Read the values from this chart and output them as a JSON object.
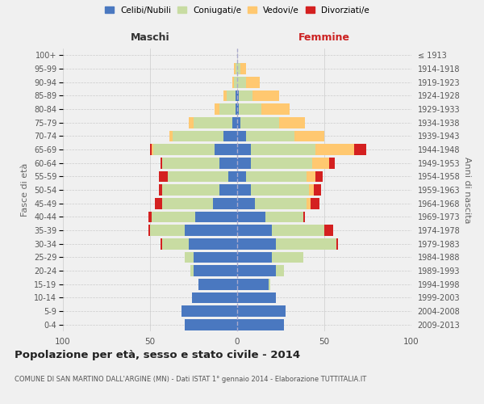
{
  "age_groups": [
    "0-4",
    "5-9",
    "10-14",
    "15-19",
    "20-24",
    "25-29",
    "30-34",
    "35-39",
    "40-44",
    "45-49",
    "50-54",
    "55-59",
    "60-64",
    "65-69",
    "70-74",
    "75-79",
    "80-84",
    "85-89",
    "90-94",
    "95-99",
    "100+"
  ],
  "birth_years": [
    "2009-2013",
    "2004-2008",
    "1999-2003",
    "1994-1998",
    "1989-1993",
    "1984-1988",
    "1979-1983",
    "1974-1978",
    "1969-1973",
    "1964-1968",
    "1959-1963",
    "1954-1958",
    "1949-1953",
    "1944-1948",
    "1939-1943",
    "1934-1938",
    "1929-1933",
    "1924-1928",
    "1919-1923",
    "1914-1918",
    "≤ 1913"
  ],
  "males": {
    "celibi": [
      30,
      32,
      26,
      22,
      25,
      25,
      28,
      30,
      24,
      14,
      10,
      5,
      10,
      13,
      8,
      3,
      1,
      1,
      0,
      0,
      0
    ],
    "coniugati": [
      0,
      0,
      0,
      0,
      2,
      5,
      15,
      20,
      25,
      29,
      33,
      35,
      33,
      35,
      29,
      22,
      9,
      5,
      2,
      1,
      0
    ],
    "vedovi": [
      0,
      0,
      0,
      0,
      0,
      0,
      0,
      0,
      0,
      0,
      0,
      0,
      0,
      1,
      2,
      3,
      3,
      2,
      1,
      1,
      0
    ],
    "divorziati": [
      0,
      0,
      0,
      0,
      0,
      0,
      1,
      1,
      2,
      4,
      2,
      5,
      1,
      1,
      0,
      0,
      0,
      0,
      0,
      0,
      0
    ]
  },
  "females": {
    "nubili": [
      27,
      28,
      22,
      18,
      22,
      20,
      22,
      20,
      16,
      10,
      8,
      5,
      8,
      8,
      5,
      2,
      1,
      1,
      0,
      0,
      0
    ],
    "coniugate": [
      0,
      0,
      0,
      1,
      5,
      18,
      35,
      30,
      22,
      30,
      33,
      35,
      35,
      37,
      28,
      22,
      13,
      8,
      5,
      2,
      0
    ],
    "vedove": [
      0,
      0,
      0,
      0,
      0,
      0,
      0,
      0,
      0,
      2,
      3,
      5,
      10,
      22,
      17,
      15,
      16,
      15,
      8,
      3,
      0
    ],
    "divorziate": [
      0,
      0,
      0,
      0,
      0,
      0,
      1,
      5,
      1,
      5,
      4,
      4,
      3,
      7,
      0,
      0,
      0,
      0,
      0,
      0,
      0
    ]
  },
  "colors": {
    "celibi_nubili": "#4a78c0",
    "coniugati": "#c8dca2",
    "vedovi": "#ffc870",
    "divorziati": "#d42020"
  },
  "title": "Popolazione per età, sesso e stato civile - 2014",
  "subtitle": "COMUNE DI SAN MARTINO DALL'ARGINE (MN) - Dati ISTAT 1° gennaio 2014 - Elaborazione TUTTITALIA.IT",
  "xlabel_left": "Maschi",
  "xlabel_right": "Femmine",
  "ylabel_left": "Fasce di età",
  "ylabel_right": "Anni di nascita",
  "legend_labels": [
    "Celibi/Nubili",
    "Coniugati/e",
    "Vedovi/e",
    "Divorziati/e"
  ],
  "xlim": 100,
  "xticks": [
    100,
    50,
    0,
    50,
    100
  ],
  "background_color": "#f0f0f0",
  "grid_color": "#cccccc",
  "bar_height": 0.82
}
